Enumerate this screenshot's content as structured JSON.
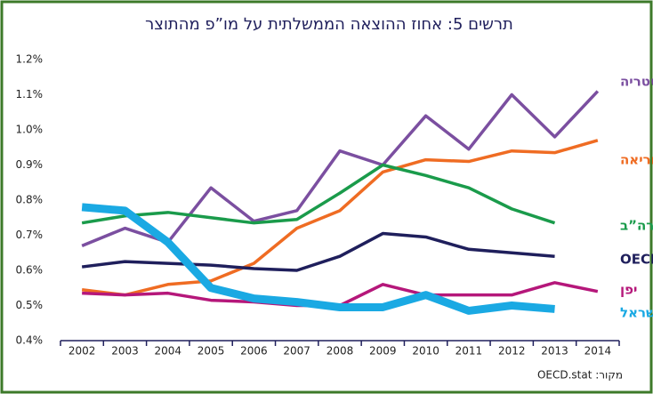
{
  "chart_data": {
    "type": "line",
    "title": "תרשים 5: אחוז ההוצאה הממשלתית על מו”פ מהתוצר",
    "source": "מקור: OECD.stat",
    "categories": [
      "2002",
      "2003",
      "2004",
      "2005",
      "2006",
      "2007",
      "2008",
      "2009",
      "2010",
      "2011",
      "2012",
      "2013",
      "2014"
    ],
    "ylim": [
      0.4,
      1.2
    ],
    "yticks": [
      {
        "value": 0.4,
        "label": "0.4%"
      },
      {
        "value": 0.5,
        "label": "0.5%"
      },
      {
        "value": 0.6,
        "label": "0.6%"
      },
      {
        "value": 0.7,
        "label": "0.7%"
      },
      {
        "value": 0.8,
        "label": "0.8%"
      },
      {
        "value": 0.9,
        "label": "0.9%"
      },
      {
        "value": 1.0,
        "label": "1.0%"
      },
      {
        "value": 1.1,
        "label": "1.1%"
      },
      {
        "value": 1.2,
        "label": "1.2%"
      }
    ],
    "series": [
      {
        "name": "אוסטריה",
        "color": "#7b4fa0",
        "values": [
          0.67,
          0.72,
          0.68,
          0.835,
          0.74,
          0.77,
          0.94,
          0.9,
          1.04,
          0.945,
          1.1,
          0.98,
          1.11
        ]
      },
      {
        "name": "דרום קוריאה",
        "color": "#ef6c23",
        "values": [
          0.545,
          0.53,
          0.56,
          0.57,
          0.62,
          0.72,
          0.77,
          0.88,
          0.915,
          0.91,
          0.94,
          0.935,
          0.97
        ]
      },
      {
        "name": "ארה”ב",
        "color": "#1a9b4b",
        "values": [
          0.735,
          0.755,
          0.765,
          0.75,
          0.735,
          0.745,
          0.82,
          0.9,
          0.87,
          0.835,
          0.775,
          0.735,
          null
        ]
      },
      {
        "name": "OECD",
        "color": "#1f1f5c",
        "values": [
          0.61,
          0.625,
          0.62,
          0.615,
          0.605,
          0.6,
          0.64,
          0.705,
          0.695,
          0.66,
          0.65,
          0.64,
          null
        ]
      },
      {
        "name": "יפן",
        "color": "#b5177a",
        "values": [
          0.535,
          0.53,
          0.535,
          0.515,
          0.51,
          0.5,
          0.5,
          0.56,
          0.53,
          0.53,
          0.53,
          0.565,
          0.54
        ]
      },
      {
        "name": "ישראל",
        "color": "#1aa9e3",
        "values": [
          0.78,
          0.77,
          0.68,
          0.55,
          0.52,
          0.51,
          0.495,
          0.495,
          0.53,
          0.485,
          0.5,
          0.49,
          null
        ]
      }
    ]
  }
}
